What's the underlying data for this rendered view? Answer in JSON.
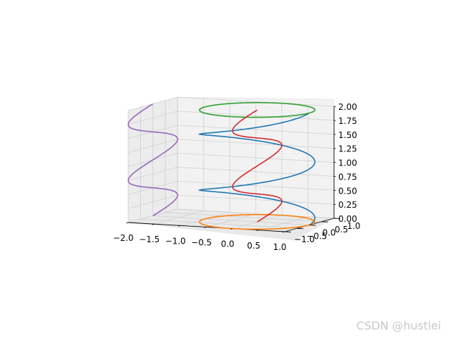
{
  "chart_data": {
    "type": "line",
    "projection": "3d",
    "xlim": [
      -2.0,
      1.0
    ],
    "ylim": [
      -1.0,
      1.0
    ],
    "zlim": [
      0.0,
      2.0
    ],
    "xticks": [
      "−2.0",
      "−1.5",
      "−1.0",
      "−0.5",
      "0.0",
      "0.5",
      "1.0"
    ],
    "yticks": [
      "−1.0",
      "−0.5",
      "0.0",
      "0.5",
      "1.0"
    ],
    "zticks": [
      "0.00",
      "0.25",
      "0.50",
      "0.75",
      "1.00",
      "1.25",
      "1.50",
      "1.75",
      "2.00"
    ],
    "grid": true,
    "series": [
      {
        "color": "#1f77b4",
        "curve": "x=cos(t), y=sin(t), z=t/(2π)",
        "t_range": [
          0,
          12.566
        ]
      },
      {
        "color": "#ff7f0e",
        "curve": "x=cos(t), y=sin(t), z=0",
        "t_range": [
          0,
          6.283
        ]
      },
      {
        "color": "#2ca02c",
        "curve": "x=cos(t), y=sin(t), z=2",
        "t_range": [
          0,
          6.283
        ]
      },
      {
        "color": "#d62728",
        "curve": "x=0, y=sin(t), z=t/(2π)",
        "t_range": [
          0,
          12.566
        ]
      },
      {
        "color": "#9467bd",
        "curve": "x=-2, y=sin(t), z=t/(2π)",
        "t_range": [
          0,
          12.566
        ]
      }
    ]
  },
  "watermark": "CSDN @hustlei"
}
